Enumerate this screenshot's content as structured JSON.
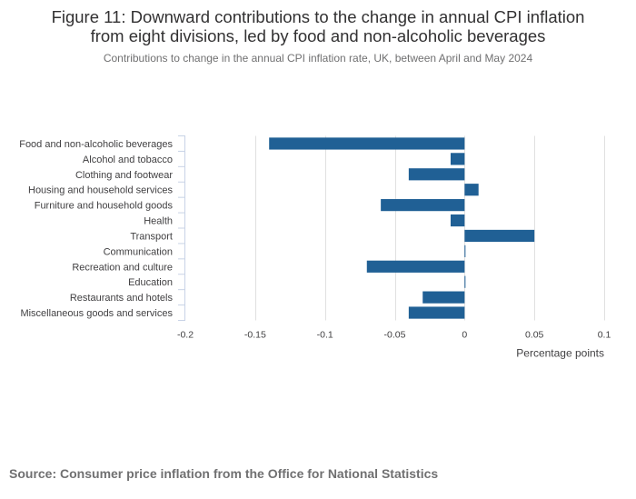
{
  "header": {
    "title_line1": "Figure 11: Downward contributions to the change in annual CPI inflation",
    "title_line2": "from eight divisions, led by food and non-alcoholic beverages",
    "subtitle": "Contributions to change in the annual CPI inflation rate, UK, between April and May 2024"
  },
  "source": "Source: Consumer price inflation from the Office for National Statistics",
  "colors": {
    "bar": "#206095",
    "grid": "#e0e0e0",
    "axis": "#c8d3e6",
    "text": "#414042"
  },
  "chart_data": {
    "type": "bar",
    "orientation": "horizontal",
    "title": "Figure 11: Downward contributions to the change in annual CPI inflation from eight divisions, led by food and non-alcoholic beverages",
    "subtitle": "Contributions to change in the annual CPI inflation rate, UK, between April and May 2024",
    "categories": [
      "Food and non-alcoholic beverages",
      "Alcohol and tobacco",
      "Clothing and footwear",
      "Housing and household services",
      "Furniture and household goods",
      "Health",
      "Transport",
      "Communication",
      "Recreation and culture",
      "Education",
      "Restaurants and hotels",
      "Miscellaneous goods and services"
    ],
    "values": [
      -0.14,
      -0.01,
      -0.04,
      0.01,
      -0.06,
      -0.01,
      0.05,
      0.0,
      -0.07,
      0.0,
      -0.03,
      -0.04
    ],
    "xlabel": "Percentage points",
    "ylabel": "",
    "xlim": [
      -0.2,
      0.1
    ],
    "xticks": [
      -0.2,
      -0.15,
      -0.1,
      -0.05,
      0,
      0.05,
      0.1
    ],
    "xtick_labels": [
      "-0.2",
      "-0.15",
      "-0.1",
      "-0.05",
      "0",
      "0.05",
      "0.1"
    ],
    "grid": true
  }
}
